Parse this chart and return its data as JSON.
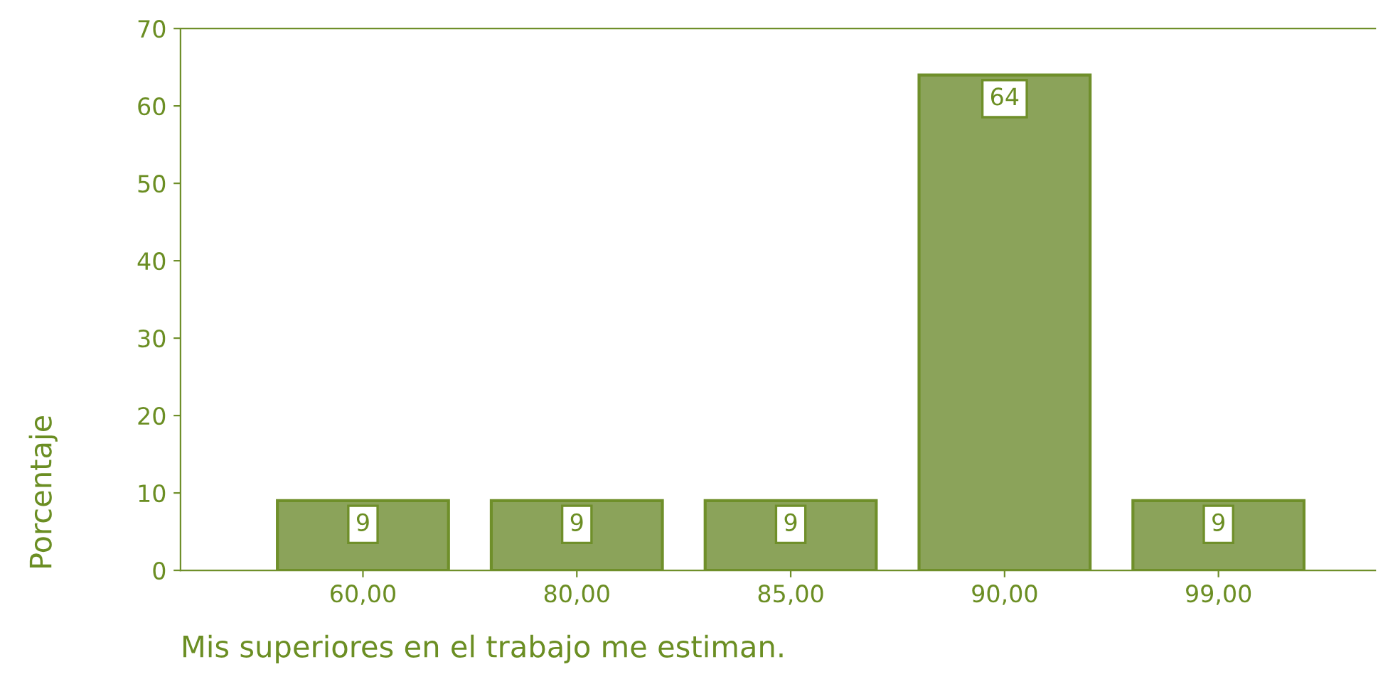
{
  "chart_data": {
    "type": "bar",
    "xlabel": "Mis superiores en el trabajo me estiman.",
    "ylabel": "Porcentaje",
    "categories": [
      "60,00",
      "80,00",
      "85,00",
      "90,00",
      "99,00"
    ],
    "values": [
      9,
      9,
      9,
      64,
      9
    ],
    "color": "#8ba35a",
    "ylim": [
      0,
      70
    ],
    "yticks": [
      0,
      10,
      20,
      30,
      40,
      50,
      60,
      70
    ],
    "grid": false,
    "legend": false,
    "data_labels": true
  }
}
